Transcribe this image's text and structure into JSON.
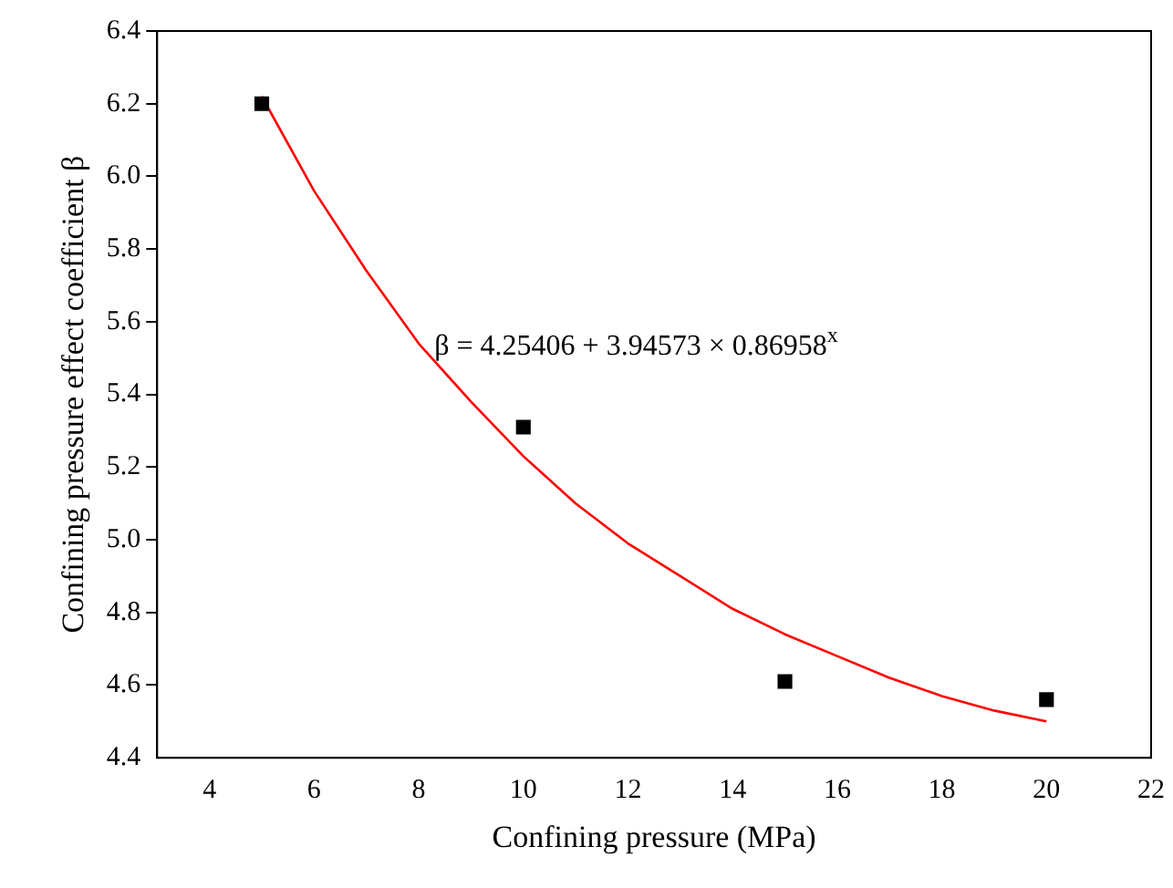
{
  "chart_data": {
    "type": "scatter",
    "xlabel": "Confining pressure (MPa)",
    "ylabel": "Confining pressure effect coefficient β",
    "marker": "square",
    "grid": false,
    "legend": false,
    "xlim": [
      3,
      22
    ],
    "xticks": [
      4,
      6,
      8,
      10,
      12,
      14,
      16,
      18,
      20,
      22
    ],
    "ylim": [
      4.4,
      6.4
    ],
    "yticks": [
      {
        "value": 4.4,
        "label": "4.4"
      },
      {
        "value": 4.6,
        "label": "4.6"
      },
      {
        "value": 4.8,
        "label": "4.8"
      },
      {
        "value": 5.0,
        "label": "5.0"
      },
      {
        "value": 5.2,
        "label": "5.2"
      },
      {
        "value": 5.4,
        "label": "5.4"
      },
      {
        "value": 5.6,
        "label": "5.6"
      },
      {
        "value": 5.8,
        "label": "5.8"
      },
      {
        "value": 6.0,
        "label": "6.0"
      },
      {
        "value": 6.2,
        "label": "6.2"
      },
      {
        "value": 6.4,
        "label": "6.4"
      }
    ],
    "series": [
      {
        "type": "scatter",
        "color": "#000000",
        "x": [
          5,
          10,
          15,
          20
        ],
        "values": [
          6.2,
          5.31,
          4.61,
          4.56
        ]
      },
      {
        "type": "line",
        "color": "#ff0000",
        "marker": "none",
        "x": [
          5,
          6,
          7,
          8,
          9,
          10,
          11,
          12,
          13,
          14,
          15,
          16,
          17,
          18,
          19,
          20
        ],
        "values": [
          6.22,
          5.96,
          5.74,
          5.54,
          5.38,
          5.23,
          5.1,
          4.99,
          4.9,
          4.81,
          4.74,
          4.68,
          4.62,
          4.57,
          4.53,
          4.5
        ]
      }
    ],
    "annotations": [
      {
        "text": "β = 4.25406 + 3.94573 × 0.86958$^{x}$",
        "x": 8.3,
        "y": 5.53
      }
    ]
  }
}
